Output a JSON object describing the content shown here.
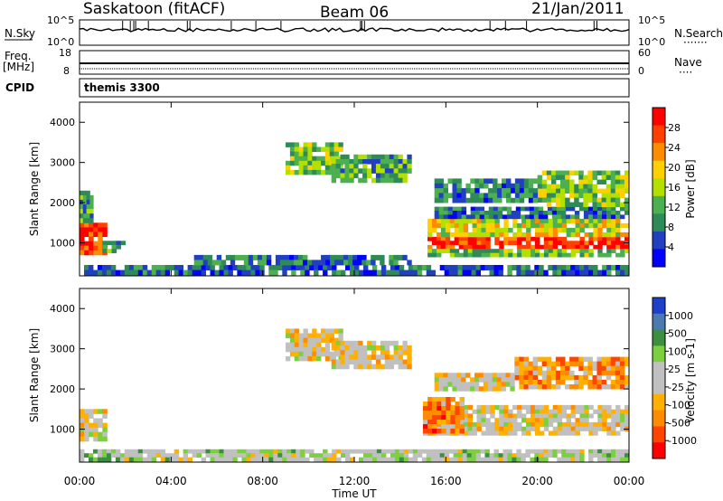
{
  "header": {
    "station": "Saskatoon (fitACF)",
    "beam": "Beam 06",
    "date": "21/Jan/2011"
  },
  "strip_labels": {
    "nsky": "N.Sky",
    "nsearch": "N.Search",
    "nsearch_dots": "·······",
    "freq_line1": "Freq.",
    "freq_line2": "[MHz]",
    "nave": "Nave",
    "nave_dots": "····",
    "cpid": "CPID",
    "cpid_value": "themis 3300",
    "noise_left_ticks": [
      "10^5",
      "10^0"
    ],
    "noise_right_ticks": [
      "10^5",
      "10^0"
    ],
    "freq_left_ticks": [
      "18",
      "8"
    ],
    "freq_right_ticks": [
      "60",
      "0"
    ]
  },
  "colors": {
    "power_scale": [
      "#0000ff",
      "#2040c0",
      "#2e8b57",
      "#4caf50",
      "#b4e000",
      "#ffd000",
      "#ff8c00",
      "#ff4000",
      "#ff0000"
    ],
    "velocity_scale": [
      "#ff0000",
      "#ff4500",
      "#ff8c00",
      "#ffb000",
      "#c0c0c0",
      "#c0c0c0",
      "#7cd040",
      "#3a9040",
      "#4a7ab0",
      "#1e40c8"
    ]
  },
  "chart_data": [
    {
      "type": "heatmap",
      "quantity": "Power",
      "ylabel": "Slant Range [km]",
      "ylim": [
        180,
        4500
      ],
      "yticks": [
        1000,
        2000,
        3000,
        4000
      ],
      "xlim": [
        0,
        24
      ],
      "xticks": [
        "00:00",
        "04:00",
        "08:00",
        "12:00",
        "16:00",
        "20:00",
        "00:00"
      ],
      "colorbar": {
        "label": "Power [dB]",
        "range": [
          0,
          32
        ],
        "ticks": [
          "4",
          "8",
          "12",
          "16",
          "20",
          "24",
          "28"
        ]
      },
      "regions": [
        {
          "t": [
            0.0,
            1.2
          ],
          "r": [
            700,
            1500
          ],
          "level": 0.85
        },
        {
          "t": [
            0.0,
            0.6
          ],
          "r": [
            1500,
            2300
          ],
          "level": 0.35
        },
        {
          "t": [
            1.0,
            2.0
          ],
          "r": [
            750,
            1050
          ],
          "level": 0.3
        },
        {
          "t": [
            0.0,
            24.0
          ],
          "r": [
            200,
            450
          ],
          "level": 0.2
        },
        {
          "t": [
            5.0,
            14.5
          ],
          "r": [
            450,
            700
          ],
          "level": 0.25
        },
        {
          "t": [
            9.0,
            11.5
          ],
          "r": [
            2700,
            3500
          ],
          "level": 0.45
        },
        {
          "t": [
            11.0,
            14.5
          ],
          "r": [
            2500,
            3200
          ],
          "level": 0.35
        },
        {
          "t": [
            15.0,
            24.0
          ],
          "r": [
            850,
            1150
          ],
          "level": 0.9
        },
        {
          "t": [
            15.2,
            24.0
          ],
          "r": [
            1150,
            1600
          ],
          "level": 0.55
        },
        {
          "t": [
            15.2,
            24.0
          ],
          "r": [
            650,
            850
          ],
          "level": 0.4
        },
        {
          "t": [
            15.5,
            24.0
          ],
          "r": [
            1600,
            1900
          ],
          "level": 0.25
        },
        {
          "t": [
            20.0,
            24.0
          ],
          "r": [
            1900,
            2800
          ],
          "level": 0.45
        },
        {
          "t": [
            15.5,
            20.0
          ],
          "r": [
            2000,
            2600
          ],
          "level": 0.25
        }
      ]
    },
    {
      "type": "heatmap",
      "quantity": "Velocity",
      "ylabel": "Slant Range [km]",
      "ylim": [
        180,
        4500
      ],
      "yticks": [
        1000,
        2000,
        3000,
        4000
      ],
      "xlabel": "Time UT",
      "xlim": [
        0,
        24
      ],
      "xticks": [
        "00:00",
        "04:00",
        "08:00",
        "12:00",
        "16:00",
        "20:00",
        "00:00"
      ],
      "colorbar": {
        "label": "Velocity [m s-1]",
        "range": [
          -1250,
          1250
        ],
        "ticks": [
          "1000",
          "500",
          "100",
          "25",
          "-25",
          "-100",
          "-500",
          "-1000"
        ]
      },
      "regions": [
        {
          "t": [
            0.0,
            1.2
          ],
          "r": [
            700,
            1500
          ],
          "level": 0.45
        },
        {
          "t": [
            0.0,
            24.0
          ],
          "r": [
            200,
            500
          ],
          "level": 0.55
        },
        {
          "t": [
            9.0,
            11.5
          ],
          "r": [
            2700,
            3500
          ],
          "level": 0.45
        },
        {
          "t": [
            11.0,
            14.5
          ],
          "r": [
            2500,
            3200
          ],
          "level": 0.45
        },
        {
          "t": [
            15.0,
            24.0
          ],
          "r": [
            850,
            1600
          ],
          "level": 0.45
        },
        {
          "t": [
            15.0,
            16.8
          ],
          "r": [
            900,
            1800
          ],
          "level": 0.25
        },
        {
          "t": [
            19.0,
            24.0
          ],
          "r": [
            2000,
            2800
          ],
          "level": 0.3
        },
        {
          "t": [
            15.5,
            19.0
          ],
          "r": [
            1950,
            2400
          ],
          "level": 0.45
        }
      ]
    }
  ]
}
